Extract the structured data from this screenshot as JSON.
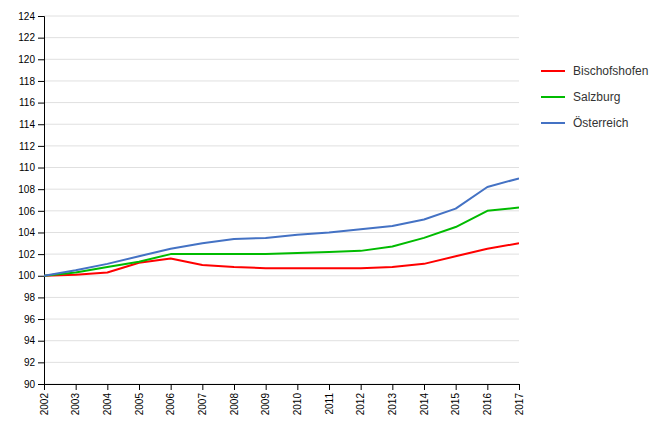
{
  "chart_data": {
    "type": "line",
    "x": [
      2002,
      2003,
      2004,
      2005,
      2006,
      2007,
      2008,
      2009,
      2010,
      2011,
      2012,
      2013,
      2014,
      2015,
      2016,
      2017
    ],
    "xlim": [
      2002,
      2017
    ],
    "xticks": [
      2002,
      2003,
      2004,
      2005,
      2006,
      2007,
      2008,
      2009,
      2010,
      2011,
      2012,
      2013,
      2014,
      2015,
      2016,
      2017
    ],
    "ylim": [
      90,
      124
    ],
    "yticks": [
      90,
      92,
      94,
      96,
      98,
      100,
      102,
      104,
      106,
      108,
      110,
      112,
      114,
      116,
      118,
      120,
      122,
      124
    ],
    "grid": true,
    "legend": "right",
    "series": [
      {
        "name": "Bischofshofen",
        "color": "#ff0000",
        "values": [
          100.0,
          100.1,
          100.3,
          101.2,
          101.6,
          101.0,
          100.8,
          100.7,
          100.7,
          100.7,
          100.7,
          100.8,
          101.1,
          101.8,
          102.5,
          103.0
        ]
      },
      {
        "name": "Salzburg",
        "color": "#00bb00",
        "values": [
          100.0,
          100.3,
          100.8,
          101.3,
          102.0,
          102.0,
          102.0,
          102.0,
          102.1,
          102.2,
          102.3,
          102.7,
          103.5,
          104.5,
          106.0,
          106.3
        ]
      },
      {
        "name": "Österreich",
        "color": "#4472c4",
        "values": [
          100.0,
          100.5,
          101.1,
          101.8,
          102.5,
          103.0,
          103.4,
          103.5,
          103.8,
          104.0,
          104.3,
          104.6,
          105.2,
          106.2,
          108.2,
          109.0
        ]
      }
    ]
  }
}
